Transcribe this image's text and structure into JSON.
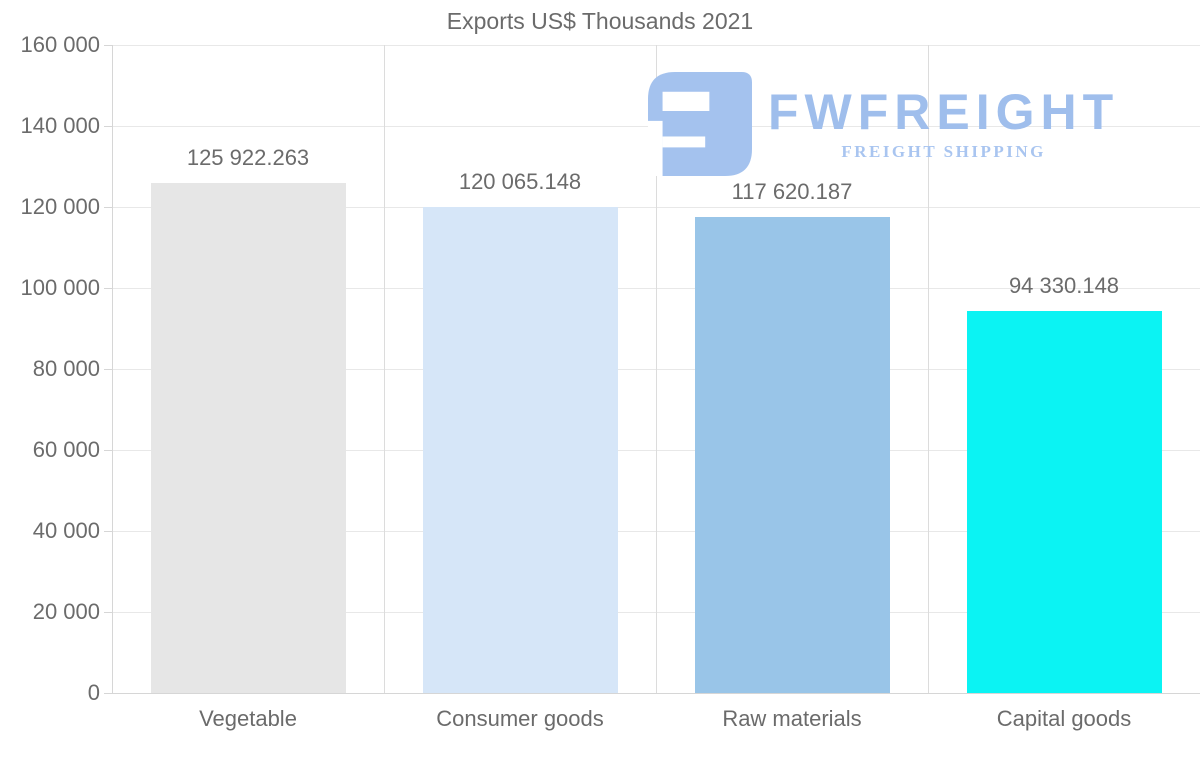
{
  "watermark": {
    "brand": "FWFREIGHT",
    "tagline": "FREIGHT SHIPPING",
    "brand_color": "#9fbeec",
    "tagline_color": "#a9c5f0",
    "icon_color": "#a4c2ee"
  },
  "chart_data": {
    "type": "bar",
    "title": "Exports US$ Thousands 2021",
    "categories": [
      "Vegetable",
      "Consumer goods",
      "Raw materials",
      "Capital goods"
    ],
    "values": [
      125922.263,
      120065.148,
      117620.187,
      94330.148
    ],
    "value_labels": [
      "125 922.263",
      "120 065.148",
      "117 620.187",
      "94 330.148"
    ],
    "bar_colors": [
      "#e6e6e6",
      "#d6e6f8",
      "#99c5e8",
      "#0bf3f3"
    ],
    "xlabel": "",
    "ylabel": "",
    "ylim": [
      0,
      160000
    ],
    "yticks": [
      {
        "value": 0,
        "label": "0"
      },
      {
        "value": 20000,
        "label": "20 000"
      },
      {
        "value": 40000,
        "label": "40 000"
      },
      {
        "value": 60000,
        "label": "60 000"
      },
      {
        "value": 80000,
        "label": "80 000"
      },
      {
        "value": 100000,
        "label": "100 000"
      },
      {
        "value": 120000,
        "label": "120 000"
      },
      {
        "value": 140000,
        "label": "140 000"
      },
      {
        "value": 160000,
        "label": "160 000"
      }
    ],
    "grid": "horizontal gridlines + vertical category separators",
    "legend": "none",
    "text_color": "#6b6b6b",
    "grid_color": "#e8e8e8",
    "separator_color": "#dcdcdc",
    "axis_color": "#d6d6d6"
  }
}
